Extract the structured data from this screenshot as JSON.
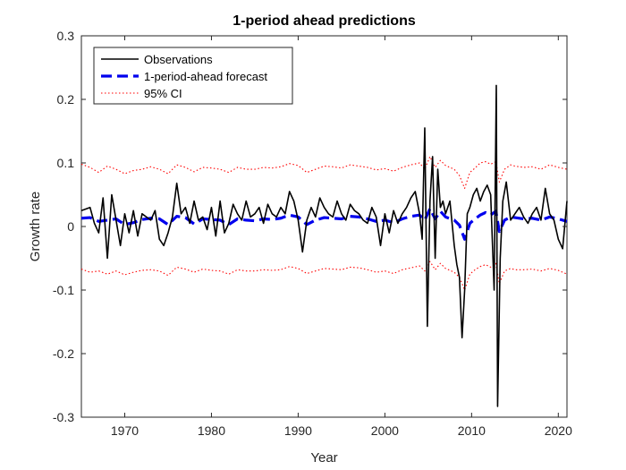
{
  "chart_data": {
    "type": "line",
    "title": "1-period ahead predictions",
    "xlabel": "Year",
    "ylabel": "Growth rate",
    "xlim": [
      1965,
      2021
    ],
    "ylim": [
      -0.3,
      0.3
    ],
    "xticks": [
      1970,
      1980,
      1990,
      2000,
      2010,
      2020
    ],
    "xtick_labels": [
      "1970",
      "1980",
      "1990",
      "2000",
      "2010",
      "2020"
    ],
    "yticks": [
      -0.3,
      -0.2,
      -0.1,
      0,
      0.1,
      0.2,
      0.3
    ],
    "ytick_labels": [
      "-0.3",
      "-0.2",
      "-0.1",
      "0",
      "0.1",
      "0.2",
      "0.3"
    ],
    "grid": false,
    "legend_position": "top-left",
    "series": [
      {
        "name": "Observations",
        "style": "solid",
        "color": "#000000",
        "x": [
          1965.0,
          1966.0,
          1966.5,
          1967.0,
          1967.5,
          1968.0,
          1968.5,
          1969.0,
          1969.5,
          1970.0,
          1970.5,
          1971.0,
          1971.5,
          1972.0,
          1972.5,
          1973.0,
          1973.5,
          1974.0,
          1974.5,
          1975.0,
          1975.5,
          1976.0,
          1976.5,
          1977.0,
          1977.5,
          1978.0,
          1978.5,
          1979.0,
          1979.5,
          1980.0,
          1980.5,
          1981.0,
          1981.5,
          1982.0,
          1982.5,
          1983.0,
          1983.5,
          1984.0,
          1984.5,
          1985.0,
          1985.5,
          1986.0,
          1986.5,
          1987.0,
          1987.5,
          1988.0,
          1988.5,
          1989.0,
          1989.5,
          1990.0,
          1990.5,
          1991.0,
          1991.5,
          1992.0,
          1992.5,
          1993.0,
          1993.5,
          1994.0,
          1994.5,
          1995.0,
          1995.5,
          1996.0,
          1996.5,
          1997.0,
          1997.5,
          1998.0,
          1998.5,
          1999.0,
          1999.5,
          2000.0,
          2000.5,
          2001.0,
          2001.5,
          2002.0,
          2002.5,
          2003.0,
          2003.5,
          2004.0,
          2004.3,
          2004.6,
          2004.9,
          2005.2,
          2005.5,
          2005.8,
          2006.1,
          2006.4,
          2006.7,
          2007.0,
          2007.5,
          2008.0,
          2008.3,
          2008.6,
          2008.9,
          2009.2,
          2009.5,
          2009.8,
          2010.2,
          2010.6,
          2011.0,
          2011.4,
          2011.8,
          2012.2,
          2012.6,
          2012.85,
          2013.0,
          2013.3,
          2013.6,
          2014.0,
          2014.5,
          2015.0,
          2015.5,
          2016.0,
          2016.5,
          2017.0,
          2017.5,
          2018.0,
          2018.5,
          2019.0,
          2019.5,
          2020.0,
          2020.5,
          2021.0
        ],
        "values": [
          0.025,
          0.03,
          0.005,
          -0.01,
          0.045,
          -0.05,
          0.05,
          0.01,
          -0.03,
          0.02,
          -0.01,
          0.025,
          -0.015,
          0.02,
          0.015,
          0.01,
          0.025,
          -0.02,
          -0.03,
          -0.01,
          0.015,
          0.068,
          0.02,
          0.03,
          0.005,
          0.04,
          0.01,
          0.015,
          -0.005,
          0.03,
          -0.015,
          0.04,
          -0.01,
          0.005,
          0.035,
          0.02,
          0.01,
          0.04,
          0.015,
          0.02,
          0.03,
          0.005,
          0.035,
          0.02,
          0.015,
          0.03,
          0.02,
          0.055,
          0.04,
          0.01,
          -0.04,
          0.01,
          0.03,
          0.015,
          0.045,
          0.03,
          0.02,
          0.015,
          0.04,
          0.02,
          0.01,
          0.035,
          0.025,
          0.02,
          0.01,
          0.005,
          0.03,
          0.015,
          -0.03,
          0.02,
          -0.01,
          0.025,
          0.005,
          0.02,
          0.03,
          0.045,
          0.055,
          0.02,
          -0.02,
          0.155,
          -0.157,
          0.04,
          0.11,
          -0.05,
          0.09,
          0.03,
          0.04,
          0.02,
          0.04,
          -0.03,
          -0.06,
          -0.08,
          -0.175,
          -0.1,
          0.02,
          0.03,
          0.05,
          0.06,
          0.04,
          0.055,
          0.065,
          0.05,
          -0.1,
          0.222,
          -0.283,
          -0.05,
          0.04,
          0.07,
          0.01,
          0.02,
          0.03,
          0.015,
          0.005,
          0.02,
          0.03,
          0.01,
          0.06,
          0.02,
          0.01,
          -0.02,
          -0.035,
          0.04
        ]
      },
      {
        "name": "1-period-ahead forecast",
        "style": "dashed",
        "color": "#0000ee",
        "x": [
          1965.0,
          1966.0,
          1967.0,
          1968.0,
          1969.0,
          1970.0,
          1971.0,
          1972.0,
          1973.0,
          1974.0,
          1975.0,
          1976.0,
          1977.0,
          1978.0,
          1979.0,
          1980.0,
          1981.0,
          1982.0,
          1983.0,
          1984.0,
          1985.0,
          1986.0,
          1987.0,
          1988.0,
          1989.0,
          1990.0,
          1991.0,
          1992.0,
          1993.0,
          1994.0,
          1995.0,
          1996.0,
          1997.0,
          1998.0,
          1999.0,
          2000.0,
          2001.0,
          2002.0,
          2003.0,
          2004.0,
          2004.6,
          2005.2,
          2005.8,
          2006.4,
          2007.0,
          2008.0,
          2008.6,
          2009.2,
          2009.8,
          2010.4,
          2011.0,
          2011.6,
          2012.2,
          2012.8,
          2013.2,
          2013.8,
          2014.5,
          2015.0,
          2016.0,
          2017.0,
          2018.0,
          2019.0,
          2020.0,
          2021.0
        ],
        "values": [
          0.013,
          0.014,
          0.008,
          0.01,
          0.012,
          0.003,
          0.006,
          0.011,
          0.013,
          0.012,
          0.003,
          0.016,
          0.014,
          0.004,
          0.012,
          0.011,
          0.01,
          0.003,
          0.012,
          0.01,
          0.009,
          0.012,
          0.011,
          0.013,
          0.018,
          0.015,
          0.003,
          0.01,
          0.014,
          0.013,
          0.012,
          0.016,
          0.015,
          0.012,
          0.008,
          0.01,
          0.006,
          0.012,
          0.016,
          0.018,
          0.01,
          0.028,
          0.012,
          0.024,
          0.015,
          0.01,
          0.002,
          -0.02,
          0.005,
          0.012,
          0.018,
          0.022,
          0.018,
          0.024,
          -0.008,
          0.01,
          0.015,
          0.014,
          0.012,
          0.013,
          0.01,
          0.015,
          0.012,
          0.008
        ]
      },
      {
        "name": "95% CI",
        "style": "dotted",
        "color": "#ff0000",
        "bound": "upper",
        "x": [
          1965.0,
          1966.0,
          1967.0,
          1968.0,
          1969.0,
          1970.0,
          1971.0,
          1972.0,
          1973.0,
          1974.0,
          1975.0,
          1976.0,
          1977.0,
          1978.0,
          1979.0,
          1980.0,
          1981.0,
          1982.0,
          1983.0,
          1984.0,
          1985.0,
          1986.0,
          1987.0,
          1988.0,
          1989.0,
          1990.0,
          1991.0,
          1992.0,
          1993.0,
          1994.0,
          1995.0,
          1996.0,
          1997.0,
          1998.0,
          1999.0,
          2000.0,
          2001.0,
          2002.0,
          2003.0,
          2004.0,
          2004.6,
          2005.2,
          2005.8,
          2006.4,
          2007.0,
          2008.0,
          2008.6,
          2009.2,
          2009.8,
          2010.4,
          2011.0,
          2011.6,
          2012.2,
          2012.8,
          2013.2,
          2013.8,
          2014.5,
          2015.0,
          2016.0,
          2017.0,
          2018.0,
          2019.0,
          2020.0,
          2021.0
        ],
        "values": [
          0.098,
          0.093,
          0.085,
          0.095,
          0.09,
          0.083,
          0.088,
          0.09,
          0.094,
          0.09,
          0.083,
          0.097,
          0.093,
          0.086,
          0.093,
          0.092,
          0.09,
          0.085,
          0.093,
          0.09,
          0.09,
          0.093,
          0.092,
          0.094,
          0.099,
          0.096,
          0.085,
          0.09,
          0.095,
          0.094,
          0.092,
          0.097,
          0.095,
          0.093,
          0.089,
          0.091,
          0.087,
          0.093,
          0.097,
          0.1,
          0.09,
          0.11,
          0.093,
          0.104,
          0.096,
          0.09,
          0.08,
          0.06,
          0.085,
          0.092,
          0.1,
          0.102,
          0.098,
          0.102,
          0.07,
          0.09,
          0.097,
          0.095,
          0.093,
          0.094,
          0.09,
          0.097,
          0.093,
          0.09
        ]
      },
      {
        "name": "95% CI (lower)",
        "style": "dotted",
        "color": "#ff0000",
        "bound": "lower",
        "x": [
          1965.0,
          1966.0,
          1967.0,
          1968.0,
          1969.0,
          1970.0,
          1971.0,
          1972.0,
          1973.0,
          1974.0,
          1975.0,
          1976.0,
          1977.0,
          1978.0,
          1979.0,
          1980.0,
          1981.0,
          1982.0,
          1983.0,
          1984.0,
          1985.0,
          1986.0,
          1987.0,
          1988.0,
          1989.0,
          1990.0,
          1991.0,
          1992.0,
          1993.0,
          1994.0,
          1995.0,
          1996.0,
          1997.0,
          1998.0,
          1999.0,
          2000.0,
          2001.0,
          2002.0,
          2003.0,
          2004.0,
          2004.6,
          2005.2,
          2005.8,
          2006.4,
          2007.0,
          2008.0,
          2008.6,
          2009.2,
          2009.8,
          2010.4,
          2011.0,
          2011.6,
          2012.2,
          2012.8,
          2013.2,
          2013.8,
          2014.5,
          2015.0,
          2016.0,
          2017.0,
          2018.0,
          2019.0,
          2020.0,
          2021.0
        ],
        "values": [
          -0.067,
          -0.072,
          -0.07,
          -0.075,
          -0.07,
          -0.076,
          -0.072,
          -0.069,
          -0.068,
          -0.07,
          -0.077,
          -0.064,
          -0.067,
          -0.072,
          -0.067,
          -0.069,
          -0.07,
          -0.075,
          -0.068,
          -0.07,
          -0.07,
          -0.068,
          -0.069,
          -0.068,
          -0.063,
          -0.066,
          -0.074,
          -0.07,
          -0.066,
          -0.067,
          -0.068,
          -0.064,
          -0.065,
          -0.068,
          -0.072,
          -0.07,
          -0.074,
          -0.068,
          -0.065,
          -0.062,
          -0.07,
          -0.055,
          -0.068,
          -0.058,
          -0.066,
          -0.072,
          -0.08,
          -0.1,
          -0.075,
          -0.068,
          -0.063,
          -0.06,
          -0.064,
          -0.058,
          -0.09,
          -0.07,
          -0.066,
          -0.068,
          -0.068,
          -0.067,
          -0.07,
          -0.066,
          -0.069,
          -0.075
        ]
      }
    ],
    "legend": [
      {
        "label": "Observations",
        "style": "solid",
        "color": "#000000"
      },
      {
        "label": "1-period-ahead forecast",
        "style": "dashed",
        "color": "#0000ee"
      },
      {
        "label": "95% CI",
        "style": "dotted",
        "color": "#ff0000"
      }
    ]
  }
}
